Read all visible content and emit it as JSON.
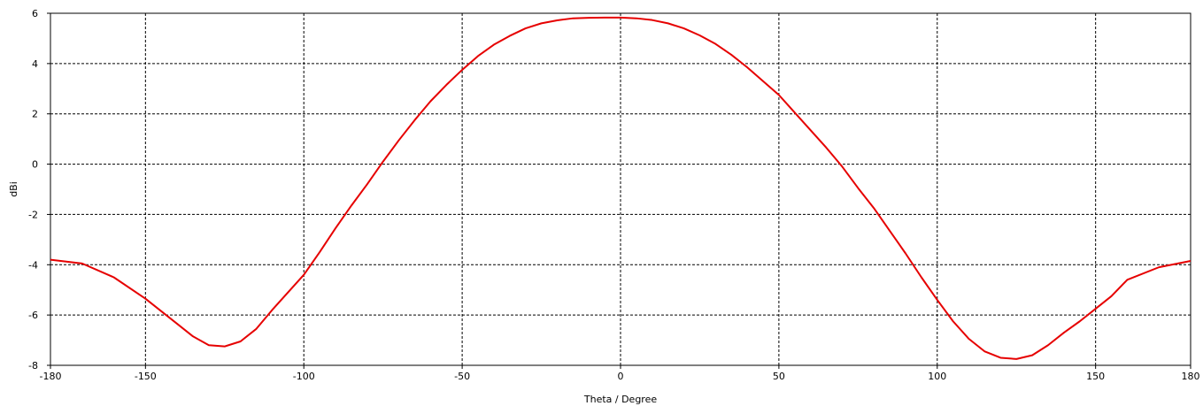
{
  "chart_data": {
    "type": "line",
    "title": "",
    "xlabel": "Theta / Degree",
    "ylabel": "dBi",
    "xlim": [
      -180,
      180
    ],
    "ylim": [
      -8,
      6
    ],
    "xticks": [
      -180,
      -150,
      -100,
      -50,
      0,
      50,
      100,
      150,
      180
    ],
    "yticks": [
      -8,
      -6,
      -4,
      -2,
      0,
      2,
      4,
      6
    ],
    "grid": true,
    "legend": "none",
    "series": [
      {
        "color": "#e60000",
        "x": [
          -180,
          -170,
          -160,
          -150,
          -140,
          -135,
          -130,
          -125,
          -120,
          -115,
          -110,
          -105,
          -100,
          -95,
          -90,
          -85,
          -80,
          -75,
          -70,
          -65,
          -60,
          -55,
          -50,
          -45,
          -40,
          -35,
          -30,
          -25,
          -20,
          -15,
          -10,
          -5,
          0,
          5,
          10,
          15,
          20,
          25,
          30,
          35,
          40,
          45,
          50,
          55,
          60,
          65,
          70,
          75,
          80,
          85,
          90,
          95,
          100,
          105,
          110,
          115,
          120,
          125,
          130,
          135,
          140,
          145,
          150,
          155,
          160,
          170,
          180
        ],
        "y": [
          -3.8,
          -3.95,
          -4.5,
          -5.35,
          -6.35,
          -6.85,
          -7.2,
          -7.25,
          -7.05,
          -6.55,
          -5.8,
          -5.1,
          -4.4,
          -3.5,
          -2.55,
          -1.65,
          -0.8,
          0.1,
          0.95,
          1.75,
          2.5,
          3.15,
          3.75,
          4.3,
          4.75,
          5.1,
          5.4,
          5.6,
          5.72,
          5.8,
          5.82,
          5.83,
          5.83,
          5.8,
          5.73,
          5.6,
          5.4,
          5.12,
          4.78,
          4.35,
          3.85,
          3.3,
          2.75,
          2.05,
          1.35,
          0.65,
          -0.1,
          -0.95,
          -1.75,
          -2.65,
          -3.55,
          -4.5,
          -5.4,
          -6.25,
          -6.95,
          -7.45,
          -7.7,
          -7.75,
          -7.6,
          -7.2,
          -6.7,
          -6.25,
          -5.75,
          -5.25,
          -4.6,
          -4.1,
          -3.85
        ]
      }
    ]
  }
}
